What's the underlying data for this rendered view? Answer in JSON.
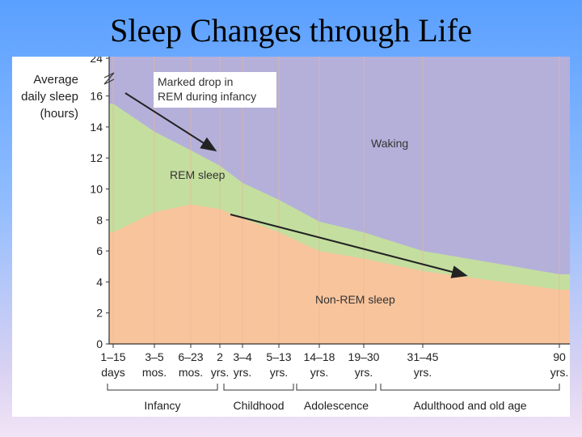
{
  "slide": {
    "title": "Sleep Changes through Life"
  },
  "chart_data": {
    "type": "area",
    "ylabel_lines": [
      "Average",
      "daily sleep",
      "(hours)"
    ],
    "ylim": [
      0,
      24
    ],
    "yticks": [
      "0",
      "2",
      "4",
      "6",
      "8",
      "10",
      "12",
      "14",
      "16",
      "24"
    ],
    "y_axis_break": "16–24",
    "categories": [
      {
        "top": "1–15",
        "bottom": "days"
      },
      {
        "top": "3–5",
        "bottom": "mos."
      },
      {
        "top": "6–23",
        "bottom": "mos."
      },
      {
        "top": "2",
        "bottom": "yrs."
      },
      {
        "top": "3–4",
        "bottom": "yrs."
      },
      {
        "top": "5–13",
        "bottom": "yrs."
      },
      {
        "top": "14–18",
        "bottom": "yrs."
      },
      {
        "top": "19–30",
        "bottom": "yrs."
      },
      {
        "top": "31–45",
        "bottom": "yrs."
      },
      {
        "top": "90",
        "bottom": "yrs."
      }
    ],
    "series": [
      {
        "name": "Non-REM sleep",
        "values": [
          7.2,
          8.5,
          9.0,
          8.7,
          8.1,
          7.2,
          6.0,
          5.5,
          4.7,
          3.5
        ]
      },
      {
        "name": "REM sleep",
        "values": [
          8.3,
          5.2,
          3.5,
          2.8,
          2.3,
          2.1,
          1.9,
          1.7,
          1.3,
          1.0
        ]
      },
      {
        "name": "Waking",
        "values": [
          8.5,
          10.3,
          11.5,
          12.5,
          13.6,
          14.7,
          16.1,
          16.8,
          18.0,
          19.5
        ]
      }
    ],
    "stages": [
      "Infancy",
      "Childhood",
      "Adolescence",
      "Adulthood and old age"
    ],
    "annotations": {
      "callout": [
        "Marked drop in",
        "REM during infancy"
      ]
    },
    "colors": {
      "waking": "#b4b0da",
      "rem": "#c4de9f",
      "nonrem": "#f8c49c",
      "grid": "#e8b89a"
    },
    "grid": true
  }
}
